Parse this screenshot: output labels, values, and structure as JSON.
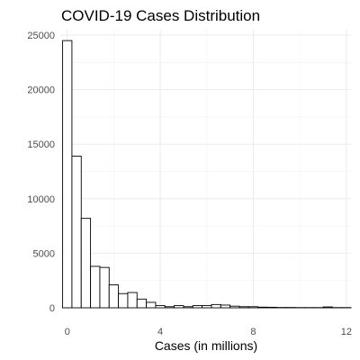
{
  "chart_data": {
    "type": "bar",
    "title": "COVID-19 Cases Distribution",
    "xlabel": "Cases (in millions)",
    "ylabel": "",
    "xlim": [
      -0.3,
      12.2
    ],
    "ylim": [
      0,
      25500
    ],
    "bin_width": 0.4,
    "grid": "on",
    "x_ticks": [
      0,
      4,
      8,
      12
    ],
    "y_ticks": [
      0,
      5000,
      10000,
      15000,
      20000,
      25000
    ],
    "x_tick_labels": [
      "0",
      "4",
      "8",
      "12"
    ],
    "y_tick_labels": [
      "0",
      "5000",
      "10000",
      "15000",
      "20000",
      "25000"
    ],
    "bins": [
      {
        "x0": -0.2,
        "x1": 0.2,
        "count": 24500
      },
      {
        "x0": 0.2,
        "x1": 0.6,
        "count": 13900
      },
      {
        "x0": 0.6,
        "x1": 1.0,
        "count": 8200
      },
      {
        "x0": 1.0,
        "x1": 1.4,
        "count": 3800
      },
      {
        "x0": 1.4,
        "x1": 1.8,
        "count": 3700
      },
      {
        "x0": 1.8,
        "x1": 2.2,
        "count": 2100
      },
      {
        "x0": 2.2,
        "x1": 2.6,
        "count": 1300
      },
      {
        "x0": 2.6,
        "x1": 3.0,
        "count": 1400
      },
      {
        "x0": 3.0,
        "x1": 3.4,
        "count": 800
      },
      {
        "x0": 3.4,
        "x1": 3.8,
        "count": 500
      },
      {
        "x0": 3.8,
        "x1": 4.2,
        "count": 200
      },
      {
        "x0": 4.2,
        "x1": 4.6,
        "count": 100
      },
      {
        "x0": 4.6,
        "x1": 5.0,
        "count": 200
      },
      {
        "x0": 5.0,
        "x1": 5.4,
        "count": 100
      },
      {
        "x0": 5.4,
        "x1": 5.8,
        "count": 200
      },
      {
        "x0": 5.8,
        "x1": 6.2,
        "count": 200
      },
      {
        "x0": 6.2,
        "x1": 6.6,
        "count": 300
      },
      {
        "x0": 6.6,
        "x1": 7.0,
        "count": 250
      },
      {
        "x0": 7.0,
        "x1": 7.4,
        "count": 150
      },
      {
        "x0": 7.4,
        "x1": 7.8,
        "count": 100
      },
      {
        "x0": 7.8,
        "x1": 8.2,
        "count": 100
      },
      {
        "x0": 8.2,
        "x1": 8.6,
        "count": 60
      },
      {
        "x0": 8.6,
        "x1": 9.0,
        "count": 50
      },
      {
        "x0": 9.0,
        "x1": 9.4,
        "count": 30
      },
      {
        "x0": 9.4,
        "x1": 9.8,
        "count": 30
      },
      {
        "x0": 9.8,
        "x1": 10.2,
        "count": 20
      },
      {
        "x0": 10.2,
        "x1": 10.6,
        "count": 20
      },
      {
        "x0": 10.6,
        "x1": 11.0,
        "count": 20
      },
      {
        "x0": 11.0,
        "x1": 11.4,
        "count": 80
      },
      {
        "x0": 11.4,
        "x1": 11.8,
        "count": 20
      },
      {
        "x0": 11.8,
        "x1": 12.2,
        "count": 20
      }
    ]
  }
}
